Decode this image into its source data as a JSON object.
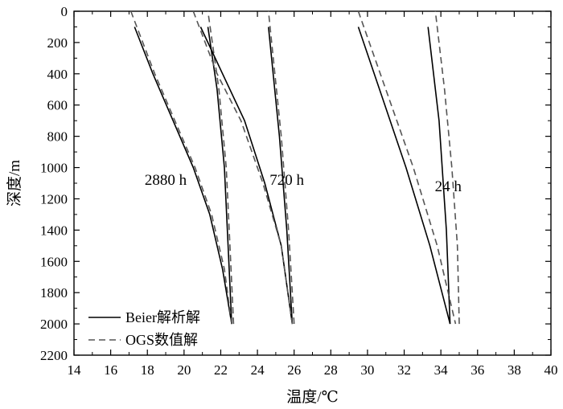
{
  "chart_data": {
    "type": "line",
    "xlabel": "温度/℃",
    "ylabel": "深度/m",
    "xlim": [
      14,
      40
    ],
    "ylim": [
      0,
      2200
    ],
    "y_inverted": true,
    "x_ticks": [
      "14",
      "16",
      "18",
      "20",
      "22",
      "24",
      "26",
      "28",
      "30",
      "32",
      "34",
      "36",
      "38",
      "40"
    ],
    "y_ticks": [
      "0",
      "200",
      "400",
      "600",
      "800",
      "1000",
      "1200",
      "1400",
      "1600",
      "1800",
      "2000",
      "2200"
    ],
    "legend_position": "bottom-left",
    "legend": [
      {
        "label": "Beier解析解",
        "style": "solid"
      },
      {
        "label": "OGS数值解",
        "style": "dashed"
      }
    ],
    "annotations": [
      {
        "text": "2880 h",
        "x": 19.0,
        "y": 1080
      },
      {
        "text": "720 h",
        "x": 25.6,
        "y": 1080
      },
      {
        "text": "24 h",
        "x": 34.4,
        "y": 1120
      }
    ],
    "series": [
      {
        "group": "2880 h",
        "style": "solid",
        "part": "downward",
        "x": [
          17.3,
          18.3,
          19.4,
          20.5,
          21.4,
          22.1,
          22.6
        ],
        "y": [
          100,
          400,
          700,
          1000,
          1300,
          1650,
          2000
        ]
      },
      {
        "group": "2880 h",
        "style": "solid",
        "part": "upward",
        "x": [
          22.6,
          22.4,
          22.2,
          21.8,
          21.3
        ],
        "y": [
          2000,
          1500,
          1000,
          500,
          100
        ]
      },
      {
        "group": "2880 h",
        "style": "dashed",
        "part": "downward",
        "x": [
          17.1,
          18.4,
          19.5,
          20.6,
          21.5,
          22.2,
          22.6
        ],
        "y": [
          0,
          400,
          700,
          1000,
          1300,
          1650,
          2000
        ]
      },
      {
        "group": "2880 h",
        "style": "dashed",
        "part": "upward",
        "x": [
          22.7,
          22.5,
          22.3,
          21.9,
          21.3
        ],
        "y": [
          2000,
          1500,
          1000,
          500,
          0
        ]
      },
      {
        "group": "720 h",
        "style": "solid",
        "part": "downward",
        "x": [
          20.9,
          22.1,
          23.3,
          24.4,
          25.3,
          25.9
        ],
        "y": [
          100,
          400,
          700,
          1100,
          1500,
          2000
        ]
      },
      {
        "group": "720 h",
        "style": "solid",
        "part": "upward",
        "x": [
          25.9,
          25.6,
          25.2,
          24.6
        ],
        "y": [
          2000,
          1400,
          800,
          100
        ]
      },
      {
        "group": "720 h",
        "style": "dashed",
        "part": "downward",
        "x": [
          20.5,
          21.8,
          23.1,
          24.3,
          25.3,
          25.9
        ],
        "y": [
          0,
          400,
          700,
          1100,
          1500,
          2000
        ]
      },
      {
        "group": "720 h",
        "style": "dashed",
        "part": "upward",
        "x": [
          26.0,
          25.7,
          25.3,
          24.6
        ],
        "y": [
          2000,
          1400,
          800,
          0
        ]
      },
      {
        "group": "24 h",
        "style": "solid",
        "part": "downward",
        "x": [
          29.5,
          30.8,
          32.1,
          33.4,
          34.5
        ],
        "y": [
          100,
          550,
          1000,
          1500,
          2000
        ]
      },
      {
        "group": "24 h",
        "style": "solid",
        "part": "upward",
        "x": [
          34.5,
          34.3,
          33.9,
          33.3
        ],
        "y": [
          2000,
          1400,
          700,
          100
        ]
      },
      {
        "group": "24 h",
        "style": "dashed",
        "part": "downward",
        "x": [
          29.5,
          31.0,
          32.5,
          33.8,
          34.8
        ],
        "y": [
          0,
          500,
          1000,
          1500,
          2000
        ]
      },
      {
        "group": "24 h",
        "style": "dashed",
        "part": "upward",
        "x": [
          35.0,
          34.9,
          34.6,
          34.2,
          33.7
        ],
        "y": [
          2000,
          1500,
          1000,
          500,
          0
        ]
      }
    ]
  }
}
